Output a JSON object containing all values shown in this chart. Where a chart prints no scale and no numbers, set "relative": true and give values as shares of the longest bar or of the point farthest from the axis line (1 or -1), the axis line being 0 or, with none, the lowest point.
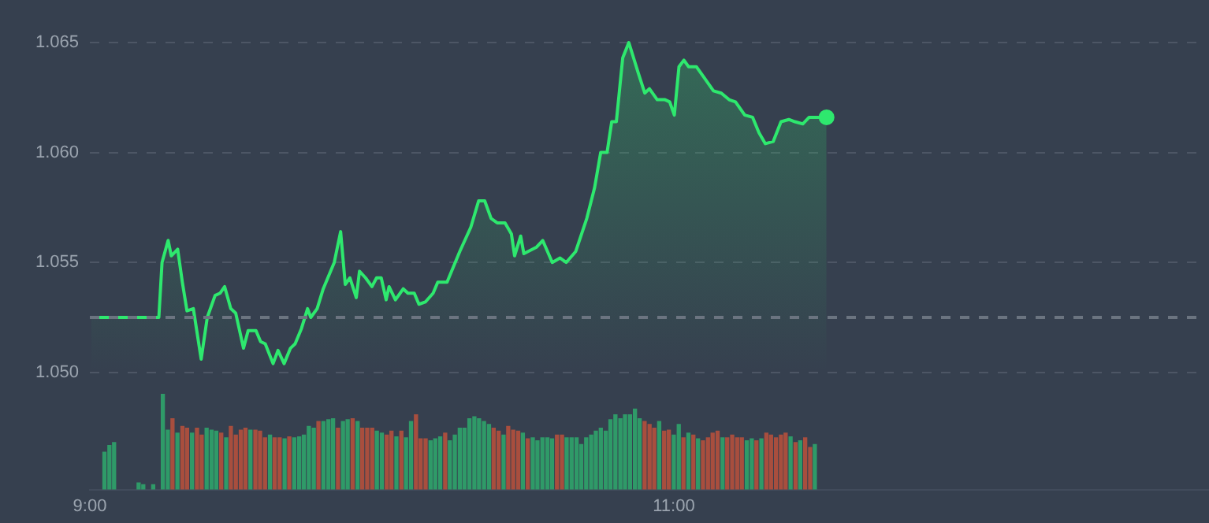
{
  "chart_data": [
    {
      "type": "area",
      "xlim": [
        9,
        12.833
      ],
      "ylim": [
        1.05,
        1.065
      ],
      "yticks": [
        {
          "value": 1.05,
          "label": "1.050"
        },
        {
          "value": 1.055,
          "label": "1.055"
        },
        {
          "value": 1.06,
          "label": "1.060"
        },
        {
          "value": 1.065,
          "label": "1.065"
        }
      ],
      "grid": "y",
      "tick_labels": "y",
      "line_style": "dashed",
      "ref_lines": [
        {
          "axis": "y",
          "value": 1.0525,
          "color": "#6b7480",
          "line_style": "dashed"
        }
      ],
      "series": [
        {
          "color": "#2ee86e",
          "x": [
            9.005,
            9.238,
            9.249,
            9.27,
            9.281,
            9.303,
            9.319,
            9.335,
            9.357,
            9.384,
            9.405,
            9.432,
            9.449,
            9.465,
            9.486,
            9.503,
            9.53,
            9.546,
            9.573,
            9.589,
            9.605,
            9.632,
            9.649,
            9.67,
            9.692,
            9.708,
            9.73,
            9.751,
            9.762,
            9.784,
            9.805,
            9.843,
            9.865,
            9.881,
            9.897,
            9.919,
            9.93,
            9.951,
            9.973,
            9.989,
            10.005,
            10.022,
            10.032,
            10.054,
            10.081,
            10.097,
            10.119,
            10.135,
            10.157,
            10.184,
            10.2,
            10.232,
            10.276,
            10.314,
            10.341,
            10.362,
            10.384,
            10.405,
            10.432,
            10.454,
            10.465,
            10.486,
            10.497,
            10.541,
            10.562,
            10.595,
            10.622,
            10.643,
            10.676,
            10.714,
            10.741,
            10.762,
            10.784,
            10.8,
            10.816,
            10.838,
            10.859,
            10.892,
            10.914,
            10.93,
            10.957,
            10.984,
            11.0,
            11.016,
            11.032,
            11.049,
            11.065,
            11.092,
            11.119,
            11.151,
            11.178,
            11.205,
            11.227,
            11.259,
            11.286,
            11.308,
            11.33,
            11.357,
            11.384,
            11.411,
            11.432,
            11.459,
            11.481,
            11.541
          ],
          "values": [
            1.0525,
            1.0525,
            1.055,
            1.056,
            1.0553,
            1.0556,
            1.0541,
            1.0528,
            1.0529,
            1.0506,
            1.0525,
            1.0535,
            1.0536,
            1.0539,
            1.0529,
            1.0527,
            1.0511,
            1.0519,
            1.0519,
            1.0514,
            1.0513,
            1.0504,
            1.051,
            1.0504,
            1.0511,
            1.0513,
            1.052,
            1.0529,
            1.0525,
            1.0529,
            1.0538,
            1.055,
            1.0564,
            1.054,
            1.0543,
            1.0534,
            1.0546,
            1.0543,
            1.0539,
            1.0543,
            1.0543,
            1.0533,
            1.0539,
            1.0533,
            1.0538,
            1.0536,
            1.0536,
            1.0531,
            1.0532,
            1.0536,
            1.0541,
            1.0541,
            1.0555,
            1.0566,
            1.0578,
            1.0578,
            1.057,
            1.0568,
            1.0568,
            1.0563,
            1.0553,
            1.0562,
            1.0554,
            1.0557,
            1.056,
            1.055,
            1.0552,
            1.055,
            1.0555,
            1.057,
            1.0584,
            1.06,
            1.06,
            1.0614,
            1.0614,
            1.0643,
            1.065,
            1.0636,
            1.0627,
            1.0629,
            1.0624,
            1.0624,
            1.0623,
            1.0617,
            1.0639,
            1.0642,
            1.0639,
            1.0639,
            1.0634,
            1.0628,
            1.0627,
            1.0624,
            1.0623,
            1.0617,
            1.0616,
            1.0609,
            1.0604,
            1.0605,
            1.0614,
            1.0615,
            1.0614,
            1.0613,
            1.0616,
            1.0616
          ]
        }
      ]
    },
    {
      "type": "bar",
      "relative": true,
      "xlim": [
        9,
        12.833
      ],
      "xticks": [
        {
          "value": 9,
          "label": "9:00"
        },
        {
          "value": 11,
          "label": "11:00"
        }
      ],
      "tick_labels": "x",
      "x": [
        9.05,
        9.067,
        9.083,
        9.167,
        9.183,
        9.217,
        9.25,
        9.267,
        9.283,
        9.3,
        9.317,
        9.333,
        9.35,
        9.367,
        9.383,
        9.4,
        9.417,
        9.433,
        9.45,
        9.467,
        9.483,
        9.5,
        9.517,
        9.533,
        9.55,
        9.567,
        9.583,
        9.6,
        9.617,
        9.633,
        9.65,
        9.667,
        9.683,
        9.7,
        9.717,
        9.733,
        9.75,
        9.767,
        9.783,
        9.8,
        9.817,
        9.833,
        9.85,
        9.867,
        9.883,
        9.9,
        9.917,
        9.933,
        9.95,
        9.967,
        9.983,
        10,
        10.017,
        10.033,
        10.05,
        10.067,
        10.083,
        10.1,
        10.117,
        10.133,
        10.15,
        10.167,
        10.183,
        10.2,
        10.217,
        10.233,
        10.25,
        10.267,
        10.283,
        10.3,
        10.317,
        10.333,
        10.35,
        10.367,
        10.383,
        10.4,
        10.417,
        10.433,
        10.45,
        10.467,
        10.483,
        10.5,
        10.517,
        10.533,
        10.55,
        10.567,
        10.583,
        10.6,
        10.617,
        10.633,
        10.65,
        10.667,
        10.683,
        10.7,
        10.717,
        10.733,
        10.75,
        10.767,
        10.783,
        10.8,
        10.817,
        10.833,
        10.85,
        10.867,
        10.883,
        10.9,
        10.917,
        10.933,
        10.95,
        10.967,
        10.983,
        11,
        11.017,
        11.033,
        11.05,
        11.067,
        11.083,
        11.1,
        11.117,
        11.133,
        11.15,
        11.167,
        11.183,
        11.2,
        11.217,
        11.233,
        11.25,
        11.267,
        11.283,
        11.3,
        11.317,
        11.333,
        11.35,
        11.367,
        11.383,
        11.4,
        11.417,
        11.433,
        11.45,
        11.467,
        11.483
      ],
      "values": [
        0.39,
        0.46,
        0.49,
        0.07,
        0.05,
        0.05,
        1.0,
        0.62,
        0.74,
        0.59,
        0.66,
        0.64,
        0.59,
        0.64,
        0.57,
        0.64,
        0.62,
        0.61,
        0.59,
        0.54,
        0.66,
        0.57,
        0.62,
        0.64,
        0.62,
        0.62,
        0.61,
        0.54,
        0.57,
        0.54,
        0.54,
        0.53,
        0.55,
        0.54,
        0.55,
        0.57,
        0.66,
        0.64,
        0.71,
        0.71,
        0.73,
        0.74,
        0.64,
        0.71,
        0.73,
        0.74,
        0.71,
        0.64,
        0.64,
        0.64,
        0.61,
        0.59,
        0.57,
        0.61,
        0.55,
        0.61,
        0.54,
        0.71,
        0.78,
        0.53,
        0.53,
        0.51,
        0.53,
        0.55,
        0.59,
        0.51,
        0.57,
        0.64,
        0.64,
        0.74,
        0.76,
        0.74,
        0.71,
        0.68,
        0.64,
        0.61,
        0.57,
        0.66,
        0.62,
        0.61,
        0.59,
        0.53,
        0.54,
        0.51,
        0.54,
        0.54,
        0.53,
        0.57,
        0.57,
        0.54,
        0.54,
        0.54,
        0.47,
        0.54,
        0.57,
        0.61,
        0.64,
        0.61,
        0.73,
        0.78,
        0.74,
        0.78,
        0.78,
        0.84,
        0.74,
        0.71,
        0.68,
        0.64,
        0.71,
        0.61,
        0.62,
        0.57,
        0.68,
        0.54,
        0.59,
        0.57,
        0.53,
        0.51,
        0.54,
        0.59,
        0.61,
        0.54,
        0.54,
        0.57,
        0.54,
        0.54,
        0.51,
        0.53,
        0.51,
        0.53,
        0.59,
        0.57,
        0.54,
        0.57,
        0.59,
        0.55,
        0.49,
        0.51,
        0.54,
        0.44,
        0.47
      ],
      "colors": [
        "#2f9a68",
        "#2f9a68",
        "#2f9a68",
        "#2f9a68",
        "#2f9a68",
        "#2f9a68",
        "#2f9a68",
        "#2f9a68",
        "#a84e3e",
        "#2f9a68",
        "#a84e3e",
        "#a84e3e",
        "#2f9a68",
        "#a84e3e",
        "#a84e3e",
        "#2f9a68",
        "#2f9a68",
        "#2f9a68",
        "#a84e3e",
        "#2f9a68",
        "#a84e3e",
        "#a84e3e",
        "#a84e3e",
        "#a84e3e",
        "#2f9a68",
        "#a84e3e",
        "#a84e3e",
        "#a84e3e",
        "#2f9a68",
        "#a84e3e",
        "#a84e3e",
        "#2f9a68",
        "#a84e3e",
        "#2f9a68",
        "#2f9a68",
        "#2f9a68",
        "#2f9a68",
        "#2f9a68",
        "#a84e3e",
        "#2f9a68",
        "#2f9a68",
        "#2f9a68",
        "#a84e3e",
        "#2f9a68",
        "#2f9a68",
        "#a84e3e",
        "#2f9a68",
        "#a84e3e",
        "#a84e3e",
        "#a84e3e",
        "#2f9a68",
        "#2f9a68",
        "#a84e3e",
        "#a84e3e",
        "#2f9a68",
        "#a84e3e",
        "#2f9a68",
        "#2f9a68",
        "#a84e3e",
        "#a84e3e",
        "#a84e3e",
        "#2f9a68",
        "#2f9a68",
        "#2f9a68",
        "#a84e3e",
        "#2f9a68",
        "#2f9a68",
        "#2f9a68",
        "#2f9a68",
        "#2f9a68",
        "#2f9a68",
        "#2f9a68",
        "#2f9a68",
        "#2f9a68",
        "#a84e3e",
        "#a84e3e",
        "#2f9a68",
        "#a84e3e",
        "#a84e3e",
        "#a84e3e",
        "#2f9a68",
        "#a84e3e",
        "#2f9a68",
        "#2f9a68",
        "#2f9a68",
        "#2f9a68",
        "#2f9a68",
        "#a84e3e",
        "#a84e3e",
        "#2f9a68",
        "#2f9a68",
        "#2f9a68",
        "#2f9a68",
        "#2f9a68",
        "#2f9a68",
        "#2f9a68",
        "#2f9a68",
        "#2f9a68",
        "#2f9a68",
        "#2f9a68",
        "#2f9a68",
        "#2f9a68",
        "#2f9a68",
        "#2f9a68",
        "#2f9a68",
        "#a84e3e",
        "#a84e3e",
        "#a84e3e",
        "#2f9a68",
        "#a84e3e",
        "#a84e3e",
        "#2f9a68",
        "#2f9a68",
        "#a84e3e",
        "#2f9a68",
        "#a84e3e",
        "#2f9a68",
        "#a84e3e",
        "#a84e3e",
        "#a84e3e",
        "#a84e3e",
        "#2f9a68",
        "#a84e3e",
        "#a84e3e",
        "#a84e3e",
        "#a84e3e",
        "#2f9a68",
        "#2f9a68",
        "#a84e3e",
        "#2f9a68",
        "#a84e3e",
        "#a84e3e",
        "#a84e3e",
        "#a84e3e",
        "#a84e3e",
        "#2f9a68",
        "#a84e3e",
        "#2f9a68",
        "#a84e3e",
        "#a84e3e",
        "#2f9a68"
      ]
    }
  ]
}
